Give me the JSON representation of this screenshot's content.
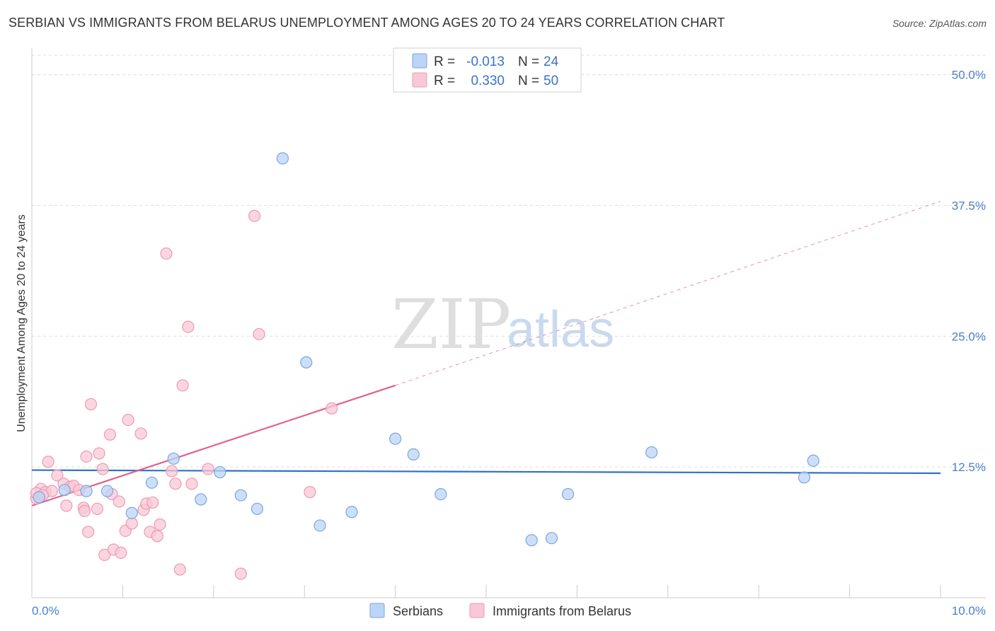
{
  "header": {
    "title": "SERBIAN VS IMMIGRANTS FROM BELARUS UNEMPLOYMENT AMONG AGES 20 TO 24 YEARS CORRELATION CHART",
    "source": "Source: ZipAtlas.com"
  },
  "watermark": {
    "zip": "ZIP",
    "atlas": "atlas"
  },
  "legend": {
    "r_label": "R =",
    "n_label": "N =",
    "rows": [
      {
        "r": "-0.013",
        "n": "24"
      },
      {
        "r": "0.330",
        "n": "50"
      }
    ]
  },
  "colors": {
    "serbians_fill": "#bcd4f5",
    "serbians_stroke": "#7aa6e0",
    "serbians_line": "#2f72c8",
    "belarus_fill": "#f9c8d6",
    "belarus_stroke": "#ec9ab3",
    "belarus_line": "#e0628e",
    "grid": "#dddddd",
    "tick_label": "#4a7fc9"
  },
  "chart_data": {
    "type": "scatter",
    "title": "SERBIAN VS IMMIGRANTS FROM BELARUS UNEMPLOYMENT AMONG AGES 20 TO 24 YEARS CORRELATION CHART",
    "xlabel": "",
    "ylabel": "Unemployment Among Ages 20 to 24 years",
    "xlim": [
      0,
      10
    ],
    "ylim": [
      0,
      52
    ],
    "x_tick_labels": [
      "0.0%",
      "10.0%"
    ],
    "y_ticks": [
      12.5,
      25.0,
      37.5,
      50.0
    ],
    "y_tick_labels": [
      "12.5%",
      "25.0%",
      "37.5%",
      "50.0%"
    ],
    "legend_position": "top-center",
    "series": [
      {
        "name": "Serbians",
        "r": -0.013,
        "n": 24,
        "trend": {
          "x0": 0.0,
          "y0": 12.2,
          "x1": 10.0,
          "y1": 11.9
        },
        "points": [
          [
            0.08,
            9.6
          ],
          [
            0.36,
            10.3
          ],
          [
            0.6,
            10.2
          ],
          [
            0.83,
            10.2
          ],
          [
            1.1,
            8.1
          ],
          [
            1.32,
            11.0
          ],
          [
            1.56,
            13.3
          ],
          [
            1.86,
            9.4
          ],
          [
            2.07,
            12.0
          ],
          [
            2.3,
            9.8
          ],
          [
            2.48,
            8.5
          ],
          [
            2.76,
            42.0
          ],
          [
            3.02,
            22.5
          ],
          [
            3.17,
            6.9
          ],
          [
            3.52,
            8.2
          ],
          [
            4.0,
            15.2
          ],
          [
            4.2,
            13.7
          ],
          [
            4.5,
            9.9
          ],
          [
            5.5,
            5.5
          ],
          [
            5.72,
            5.7
          ],
          [
            5.9,
            9.9
          ],
          [
            6.82,
            13.9
          ],
          [
            8.5,
            11.5
          ],
          [
            8.6,
            13.1
          ]
        ]
      },
      {
        "name": "Immigrants from Belarus",
        "r": 0.33,
        "n": 50,
        "trend": {
          "x0": 0.0,
          "y0": 8.8,
          "x1": 4.0,
          "y1": 20.3
        },
        "trend_dashed_to": {
          "x": 10.0,
          "y": 37.9
        },
        "points": [
          [
            0.05,
            9.5
          ],
          [
            0.1,
            10.4
          ],
          [
            0.15,
            10.1
          ],
          [
            0.18,
            13.0
          ],
          [
            0.22,
            10.2
          ],
          [
            0.28,
            11.7
          ],
          [
            0.35,
            10.9
          ],
          [
            0.38,
            8.8
          ],
          [
            0.42,
            10.6
          ],
          [
            0.46,
            10.7
          ],
          [
            0.52,
            10.3
          ],
          [
            0.57,
            8.6
          ],
          [
            0.58,
            8.3
          ],
          [
            0.6,
            13.5
          ],
          [
            0.62,
            6.3
          ],
          [
            0.65,
            18.5
          ],
          [
            0.72,
            8.5
          ],
          [
            0.74,
            13.8
          ],
          [
            0.78,
            12.3
          ],
          [
            0.8,
            4.1
          ],
          [
            0.86,
            15.6
          ],
          [
            0.88,
            9.9
          ],
          [
            0.9,
            4.6
          ],
          [
            0.96,
            9.2
          ],
          [
            0.98,
            4.3
          ],
          [
            1.03,
            6.4
          ],
          [
            1.06,
            17.0
          ],
          [
            1.1,
            7.1
          ],
          [
            1.2,
            15.7
          ],
          [
            1.23,
            8.4
          ],
          [
            1.26,
            9.0
          ],
          [
            1.3,
            6.3
          ],
          [
            1.33,
            9.1
          ],
          [
            1.38,
            5.9
          ],
          [
            1.41,
            7.0
          ],
          [
            1.48,
            32.9
          ],
          [
            1.54,
            12.1
          ],
          [
            1.58,
            10.9
          ],
          [
            1.63,
            2.7
          ],
          [
            1.66,
            20.3
          ],
          [
            1.72,
            25.9
          ],
          [
            1.76,
            10.9
          ],
          [
            1.94,
            12.3
          ],
          [
            2.3,
            2.3
          ],
          [
            2.45,
            36.5
          ],
          [
            2.5,
            25.2
          ],
          [
            3.06,
            10.1
          ],
          [
            3.3,
            18.1
          ],
          [
            0.05,
            10.0
          ],
          [
            0.12,
            9.8
          ]
        ]
      }
    ]
  },
  "bottom_legend": {
    "items": [
      {
        "label": "Serbians"
      },
      {
        "label": "Immigrants from Belarus"
      }
    ]
  }
}
